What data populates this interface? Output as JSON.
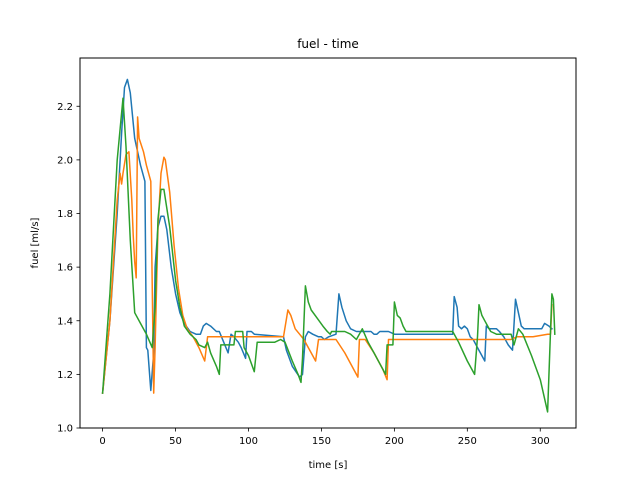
{
  "chart_data": {
    "type": "line",
    "title": "fuel - time",
    "xlabel": "time [s]",
    "ylabel": "fuel [ml/s]",
    "xlim": [
      -15.5,
      324.5
    ],
    "ylim": [
      1.0,
      2.38
    ],
    "xticks": [
      0,
      50,
      100,
      150,
      200,
      250,
      300
    ],
    "yticks": [
      1.0,
      1.2,
      1.4,
      1.6,
      1.8,
      2.0,
      2.2
    ],
    "ytick_labels": [
      "1.0",
      "1.2",
      "1.4",
      "1.6",
      "1.8",
      "2.0",
      "2.2"
    ],
    "grid": false,
    "legend": "none",
    "series": [
      {
        "color": "#1f77b4",
        "points": [
          [
            0,
            1.13
          ],
          [
            5,
            1.4
          ],
          [
            10,
            1.8
          ],
          [
            13,
            2.1
          ],
          [
            15,
            2.27
          ],
          [
            17,
            2.3
          ],
          [
            19,
            2.25
          ],
          [
            22,
            2.08
          ],
          [
            26,
            1.98
          ],
          [
            29,
            1.92
          ],
          [
            30,
            1.3
          ],
          [
            31,
            1.29
          ],
          [
            33,
            1.14
          ],
          [
            35,
            1.28
          ],
          [
            36,
            1.6
          ],
          [
            38,
            1.75
          ],
          [
            40,
            1.79
          ],
          [
            42,
            1.79
          ],
          [
            44,
            1.74
          ],
          [
            47,
            1.6
          ],
          [
            50,
            1.5
          ],
          [
            53,
            1.43
          ],
          [
            56,
            1.39
          ],
          [
            60,
            1.36
          ],
          [
            64,
            1.35
          ],
          [
            67,
            1.35
          ],
          [
            69,
            1.38
          ],
          [
            71,
            1.39
          ],
          [
            74,
            1.38
          ],
          [
            78,
            1.36
          ],
          [
            80,
            1.36
          ],
          [
            83,
            1.32
          ],
          [
            86,
            1.28
          ],
          [
            88,
            1.35
          ],
          [
            90,
            1.34
          ],
          [
            93,
            1.32
          ],
          [
            95,
            1.3
          ],
          [
            98,
            1.26
          ],
          [
            99,
            1.36
          ],
          [
            102,
            1.36
          ],
          [
            104,
            1.35
          ],
          [
            124,
            1.34
          ],
          [
            126,
            1.29
          ],
          [
            130,
            1.23
          ],
          [
            135,
            1.19
          ],
          [
            137,
            1.2
          ],
          [
            139,
            1.34
          ],
          [
            141,
            1.36
          ],
          [
            144,
            1.35
          ],
          [
            148,
            1.34
          ],
          [
            150,
            1.34
          ],
          [
            152,
            1.33
          ],
          [
            155,
            1.34
          ],
          [
            160,
            1.35
          ],
          [
            162,
            1.5
          ],
          [
            164,
            1.45
          ],
          [
            167,
            1.4
          ],
          [
            170,
            1.37
          ],
          [
            174,
            1.36
          ],
          [
            180,
            1.36
          ],
          [
            184,
            1.36
          ],
          [
            186,
            1.35
          ],
          [
            188,
            1.35
          ],
          [
            190,
            1.36
          ],
          [
            196,
            1.36
          ],
          [
            200,
            1.35
          ],
          [
            206,
            1.35
          ],
          [
            210,
            1.35
          ],
          [
            220,
            1.35
          ],
          [
            230,
            1.35
          ],
          [
            240,
            1.35
          ],
          [
            241,
            1.49
          ],
          [
            243,
            1.45
          ],
          [
            244,
            1.38
          ],
          [
            246,
            1.37
          ],
          [
            248,
            1.38
          ],
          [
            250,
            1.37
          ],
          [
            252,
            1.34
          ],
          [
            254,
            1.33
          ],
          [
            257,
            1.3
          ],
          [
            262,
            1.25
          ],
          [
            263,
            1.38
          ],
          [
            265,
            1.37
          ],
          [
            268,
            1.37
          ],
          [
            270,
            1.37
          ],
          [
            272,
            1.36
          ],
          [
            275,
            1.34
          ],
          [
            278,
            1.31
          ],
          [
            281,
            1.29
          ],
          [
            283,
            1.48
          ],
          [
            285,
            1.43
          ],
          [
            287,
            1.38
          ],
          [
            289,
            1.37
          ],
          [
            292,
            1.37
          ],
          [
            295,
            1.37
          ],
          [
            298,
            1.37
          ],
          [
            301,
            1.37
          ],
          [
            303,
            1.39
          ],
          [
            306,
            1.38
          ],
          [
            308,
            1.37
          ]
        ]
      },
      {
        "color": "#ff7f0e",
        "points": [
          [
            0,
            1.13
          ],
          [
            5,
            1.4
          ],
          [
            10,
            1.85
          ],
          [
            12,
            1.95
          ],
          [
            13,
            1.91
          ],
          [
            14,
            1.95
          ],
          [
            16,
            2.02
          ],
          [
            18,
            2.03
          ],
          [
            20,
            1.85
          ],
          [
            21,
            1.72
          ],
          [
            22,
            1.62
          ],
          [
            23,
            1.56
          ],
          [
            24,
            2.16
          ],
          [
            25,
            2.08
          ],
          [
            28,
            2.03
          ],
          [
            30,
            1.98
          ],
          [
            33,
            1.92
          ],
          [
            35,
            1.13
          ],
          [
            36,
            1.3
          ],
          [
            38,
            1.75
          ],
          [
            40,
            1.95
          ],
          [
            42,
            2.01
          ],
          [
            43,
            2.0
          ],
          [
            46,
            1.88
          ],
          [
            49,
            1.68
          ],
          [
            52,
            1.52
          ],
          [
            55,
            1.42
          ],
          [
            58,
            1.37
          ],
          [
            62,
            1.34
          ],
          [
            66,
            1.3
          ],
          [
            70,
            1.25
          ],
          [
            72,
            1.34
          ],
          [
            80,
            1.34
          ],
          [
            90,
            1.34
          ],
          [
            100,
            1.34
          ],
          [
            110,
            1.34
          ],
          [
            120,
            1.34
          ],
          [
            124,
            1.34
          ],
          [
            127,
            1.44
          ],
          [
            129,
            1.42
          ],
          [
            132,
            1.37
          ],
          [
            135,
            1.35
          ],
          [
            138,
            1.33
          ],
          [
            140,
            1.31
          ],
          [
            143,
            1.28
          ],
          [
            146,
            1.25
          ],
          [
            148,
            1.33
          ],
          [
            160,
            1.33
          ],
          [
            166,
            1.28
          ],
          [
            172,
            1.22
          ],
          [
            175,
            1.19
          ],
          [
            176,
            1.33
          ],
          [
            180,
            1.33
          ],
          [
            186,
            1.28
          ],
          [
            192,
            1.22
          ],
          [
            195,
            1.18
          ],
          [
            196,
            1.33
          ],
          [
            205,
            1.33
          ],
          [
            220,
            1.33
          ],
          [
            240,
            1.33
          ],
          [
            260,
            1.33
          ],
          [
            280,
            1.33
          ],
          [
            284,
            1.34
          ],
          [
            295,
            1.34
          ],
          [
            305,
            1.35
          ],
          [
            307,
            1.35
          ],
          [
            308,
            1.46
          ]
        ]
      },
      {
        "color": "#2ca02c",
        "points": [
          [
            0,
            1.13
          ],
          [
            5,
            1.5
          ],
          [
            10,
            2.0
          ],
          [
            14,
            2.23
          ],
          [
            16,
            2.05
          ],
          [
            19,
            1.7
          ],
          [
            22,
            1.43
          ],
          [
            26,
            1.39
          ],
          [
            30,
            1.35
          ],
          [
            34,
            1.3
          ],
          [
            36,
            1.45
          ],
          [
            38,
            1.78
          ],
          [
            40,
            1.89
          ],
          [
            42,
            1.89
          ],
          [
            46,
            1.75
          ],
          [
            50,
            1.55
          ],
          [
            53,
            1.45
          ],
          [
            56,
            1.38
          ],
          [
            60,
            1.35
          ],
          [
            64,
            1.33
          ],
          [
            66,
            1.31
          ],
          [
            70,
            1.3
          ],
          [
            72,
            1.32
          ],
          [
            74,
            1.28
          ],
          [
            78,
            1.23
          ],
          [
            80,
            1.2
          ],
          [
            81,
            1.31
          ],
          [
            90,
            1.31
          ],
          [
            91,
            1.36
          ],
          [
            96,
            1.36
          ],
          [
            97,
            1.3
          ],
          [
            100,
            1.27
          ],
          [
            104,
            1.21
          ],
          [
            106,
            1.32
          ],
          [
            118,
            1.32
          ],
          [
            122,
            1.33
          ],
          [
            125,
            1.32
          ],
          [
            130,
            1.25
          ],
          [
            134,
            1.2
          ],
          [
            136,
            1.17
          ],
          [
            137,
            1.26
          ],
          [
            139,
            1.53
          ],
          [
            141,
            1.47
          ],
          [
            143,
            1.44
          ],
          [
            147,
            1.41
          ],
          [
            151,
            1.38
          ],
          [
            154,
            1.36
          ],
          [
            156,
            1.35
          ],
          [
            157,
            1.36
          ],
          [
            166,
            1.36
          ],
          [
            170,
            1.35
          ],
          [
            174,
            1.33
          ],
          [
            178,
            1.37
          ],
          [
            182,
            1.32
          ],
          [
            186,
            1.28
          ],
          [
            190,
            1.24
          ],
          [
            194,
            1.2
          ],
          [
            195,
            1.31
          ],
          [
            199,
            1.31
          ],
          [
            200,
            1.47
          ],
          [
            202,
            1.42
          ],
          [
            204,
            1.41
          ],
          [
            206,
            1.38
          ],
          [
            208,
            1.36
          ],
          [
            230,
            1.36
          ],
          [
            240,
            1.36
          ],
          [
            244,
            1.32
          ],
          [
            250,
            1.25
          ],
          [
            255,
            1.2
          ],
          [
            257,
            1.34
          ],
          [
            258,
            1.46
          ],
          [
            260,
            1.42
          ],
          [
            262,
            1.4
          ],
          [
            264,
            1.38
          ],
          [
            266,
            1.36
          ],
          [
            270,
            1.35
          ],
          [
            276,
            1.35
          ],
          [
            280,
            1.35
          ],
          [
            282,
            1.31
          ],
          [
            285,
            1.37
          ],
          [
            288,
            1.35
          ],
          [
            294,
            1.27
          ],
          [
            300,
            1.18
          ],
          [
            305,
            1.06
          ],
          [
            307,
            1.36
          ],
          [
            308,
            1.5
          ],
          [
            309,
            1.48
          ],
          [
            310,
            1.35
          ]
        ]
      }
    ]
  }
}
